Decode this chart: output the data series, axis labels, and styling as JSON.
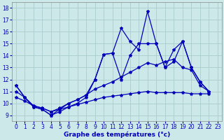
{
  "xlabel": "Graphe des températures (°c)",
  "background_color": "#cce8e8",
  "grid_color": "#aacccc",
  "line_color": "#0000bb",
  "xlim": [
    -0.5,
    23.5
  ],
  "ylim": [
    8.5,
    18.5
  ],
  "yticks": [
    9,
    10,
    11,
    12,
    13,
    14,
    15,
    16,
    17,
    18
  ],
  "xticks": [
    0,
    1,
    2,
    3,
    4,
    5,
    6,
    7,
    8,
    9,
    10,
    11,
    12,
    13,
    14,
    15,
    16,
    17,
    18,
    19,
    20,
    21,
    22,
    23
  ],
  "series": [
    [
      11.5,
      10.5,
      9.7,
      9.5,
      9.0,
      9.3,
      9.7,
      10.0,
      10.5,
      12.0,
      14.1,
      14.2,
      16.3,
      15.2,
      14.5,
      17.7,
      15.0,
      13.0,
      13.5,
      15.2,
      13.0,
      11.8,
      11.0,
      10.8
    ],
    [
      11.5,
      10.5,
      9.7,
      9.5,
      9.0,
      9.5,
      10.0,
      10.3,
      10.7,
      12.0,
      14.1,
      14.2,
      12.0,
      14.0,
      15.0,
      15.0,
      15.0,
      13.0,
      14.5,
      15.2,
      13.0,
      11.8,
      11.0,
      10.8
    ],
    [
      11.0,
      10.5,
      9.8,
      9.6,
      9.3,
      9.6,
      10.0,
      10.3,
      10.7,
      11.2,
      11.5,
      11.8,
      12.2,
      12.6,
      13.0,
      13.4,
      13.2,
      13.5,
      13.7,
      13.0,
      12.8,
      11.5,
      11.0,
      10.8
    ],
    [
      10.5,
      10.2,
      9.8,
      9.6,
      9.3,
      9.5,
      9.7,
      9.9,
      10.1,
      10.3,
      10.5,
      10.6,
      10.7,
      10.8,
      10.9,
      11.0,
      10.9,
      10.9,
      10.9,
      10.9,
      10.8,
      10.8,
      10.8,
      10.8
    ]
  ],
  "marker": "*",
  "markersize": 3,
  "linewidth": 0.9,
  "tick_fontsize": 5.5,
  "xlabel_fontsize": 6.5
}
